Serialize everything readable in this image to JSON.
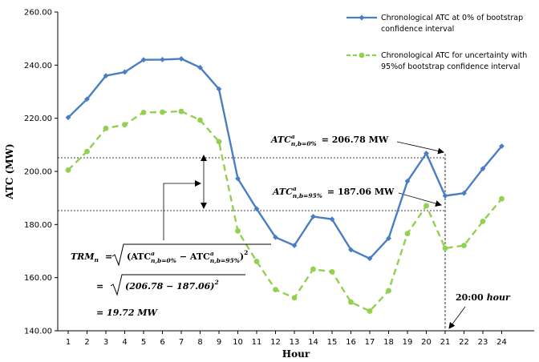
{
  "chart_data": {
    "type": "line",
    "xlabel": "Hour",
    "ylabel": "ATC (MW)",
    "x": [
      1,
      2,
      3,
      4,
      5,
      6,
      7,
      8,
      9,
      10,
      11,
      12,
      13,
      14,
      15,
      16,
      17,
      18,
      19,
      20,
      21,
      22,
      23,
      24
    ],
    "ylim": [
      140,
      260
    ],
    "yticks": [
      "140.00",
      "160.00",
      "180.00",
      "200.00",
      "220.00",
      "240.00",
      "260.00"
    ],
    "grid": false,
    "legend_position": "top-right",
    "series": [
      {
        "name": "Chronological ATC at 0% of bootstrap confidence interval",
        "color": "#4a7ec2",
        "style": "solid",
        "marker": "diamond",
        "values": [
          220.3,
          227.2,
          236.0,
          237.4,
          242.0,
          242.1,
          242.4,
          239.1,
          231.0,
          197.3,
          185.9,
          175.2,
          172.1,
          183.0,
          182.0,
          170.5,
          167.2,
          174.8,
          196.3,
          206.78,
          190.8,
          191.8,
          201.0,
          209.5
        ]
      },
      {
        "name": "Chronological ATC for uncertainty with 95%of bootstrap confidence interval",
        "color": "#92d050",
        "style": "dashed",
        "marker": "circle",
        "values": [
          200.5,
          207.5,
          216.2,
          217.6,
          222.2,
          222.3,
          222.6,
          219.3,
          211.2,
          177.6,
          166.1,
          155.5,
          152.4,
          163.2,
          162.2,
          150.8,
          147.4,
          155.1,
          176.6,
          187.06,
          171.1,
          172.1,
          181.2,
          189.7
        ]
      }
    ],
    "annotations": {
      "atc0_label": "ATC",
      "atc0_sup": "a",
      "atc0_sub": "n,b=0%",
      "atc0_value": "= 206.78 MW",
      "atc95_label": "ATC",
      "atc95_sup": "a",
      "atc95_sub": "n,b=95%",
      "atc95_value": "= 187.06 MW",
      "trm_label": "TRM",
      "trm_sub": "n",
      "trm_eq": "=",
      "trm_line1_open": "(ATC",
      "trm_line1_sup1": "a",
      "trm_line1_sub1": "n,b=0%",
      "trm_line1_minus": "− ATC",
      "trm_line1_sup2": "a",
      "trm_line1_sub2": "n,b=95%",
      "trm_line1_close": ")",
      "trm_line1_pow": "2",
      "trm_line2": "(206.78 − 187.06)",
      "trm_line2_pow": "2",
      "trm_line2_eq": "=",
      "trm_result": "= 19.72 MW",
      "hour_label": "20:00",
      "hour_unit": "hour"
    }
  }
}
